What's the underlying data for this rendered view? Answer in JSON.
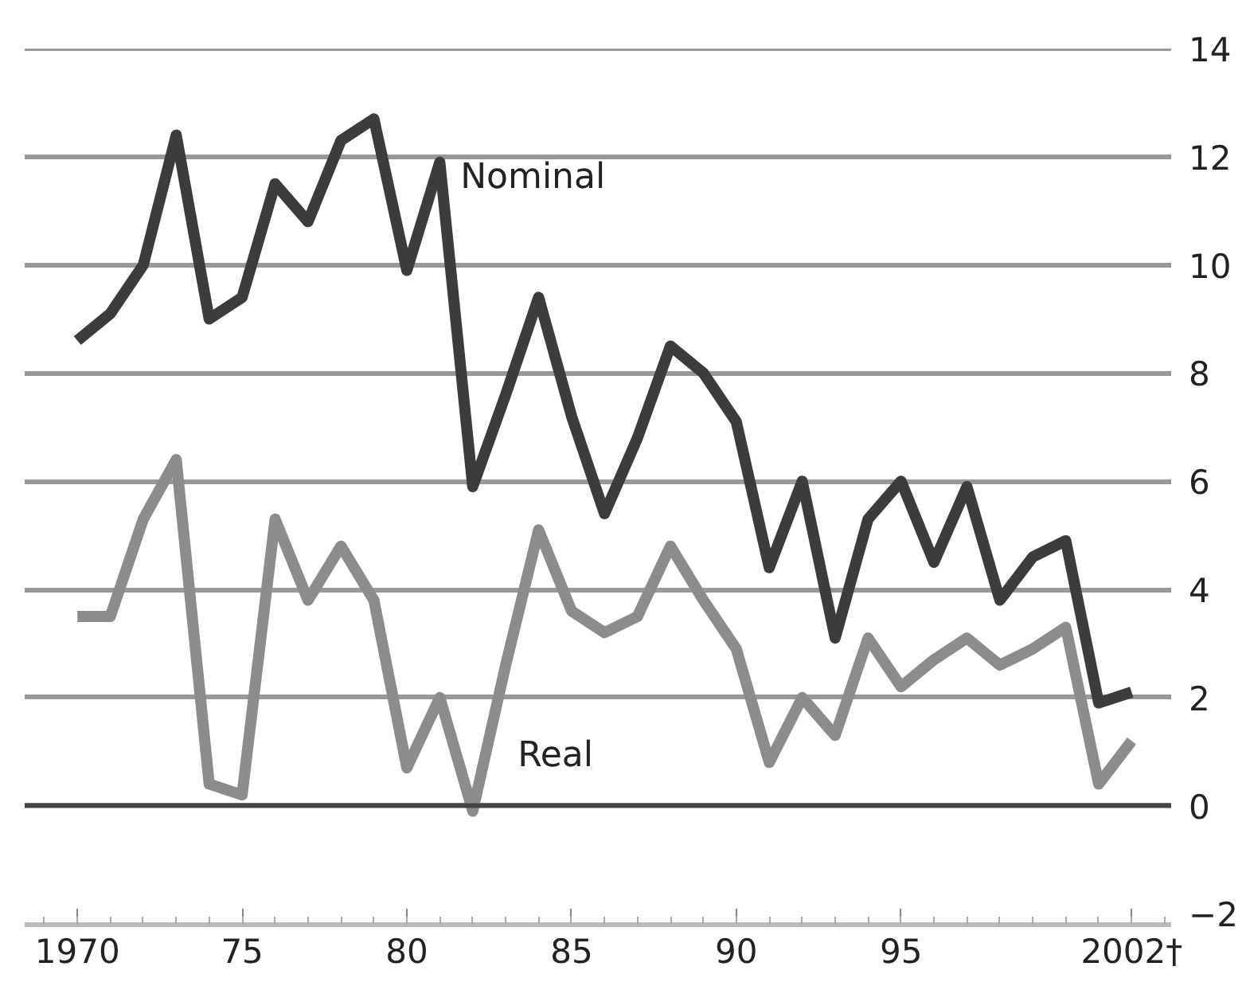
{
  "chart_data": {
    "type": "line",
    "x": [
      1970,
      1971,
      1972,
      1973,
      1974,
      1975,
      1976,
      1977,
      1978,
      1979,
      1980,
      1981,
      1982,
      1983,
      1984,
      1985,
      1986,
      1987,
      1988,
      1989,
      1990,
      1991,
      1992,
      1993,
      1994,
      1995,
      1996,
      1997,
      1998,
      1999,
      2000,
      2001,
      2002
    ],
    "series": [
      {
        "name": "Nominal",
        "color": "#3c3c3c",
        "values": [
          8.6,
          9.1,
          10.0,
          12.4,
          9.0,
          9.4,
          11.5,
          10.8,
          12.3,
          12.7,
          9.9,
          11.9,
          5.9,
          7.6,
          9.4,
          7.2,
          5.4,
          6.8,
          8.5,
          8.0,
          7.1,
          4.4,
          6.0,
          3.1,
          5.3,
          6.0,
          4.5,
          5.9,
          3.8,
          4.6,
          4.9,
          1.9,
          2.1
        ]
      },
      {
        "name": "Real",
        "color": "#8c8c8c",
        "values": [
          3.5,
          3.5,
          5.3,
          6.4,
          0.4,
          0.2,
          5.3,
          3.8,
          4.8,
          3.8,
          0.7,
          2.0,
          -0.1,
          2.6,
          5.1,
          3.6,
          3.2,
          3.5,
          4.8,
          3.8,
          2.9,
          0.8,
          2.0,
          1.3,
          3.1,
          2.2,
          2.7,
          3.1,
          2.6,
          2.9,
          3.3,
          0.4,
          1.2
        ]
      }
    ],
    "xlim": [
      1968.4,
      2003.2
    ],
    "xticks": [
      1970,
      {
        "value": 1975,
        "label": "75"
      },
      {
        "value": 1980,
        "label": "80"
      },
      {
        "value": 1985,
        "label": "85"
      },
      {
        "value": 1990,
        "label": "90"
      },
      {
        "value": 1995,
        "label": "95"
      },
      {
        "value": 2002,
        "label": "2002†"
      }
    ],
    "ylim": [
      -2.2,
      14
    ],
    "yticks": [
      {
        "value": -2,
        "label": "−2"
      },
      0,
      2,
      4,
      6,
      8,
      10,
      12,
      14
    ],
    "grid": "y",
    "marker": "none",
    "line_style": "solid"
  }
}
